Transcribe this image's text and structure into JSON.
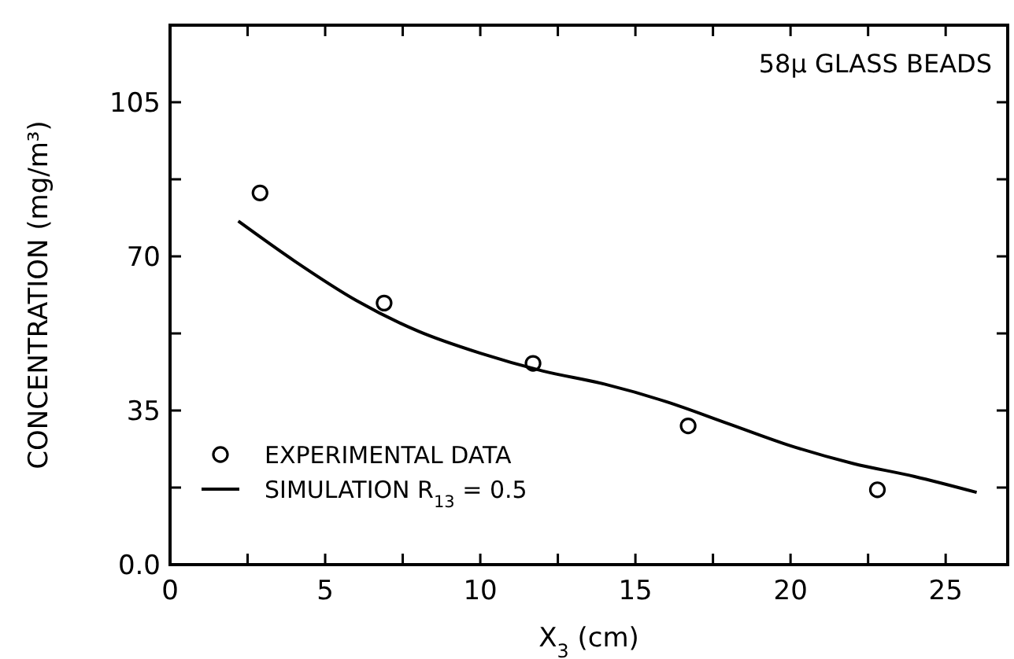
{
  "chart_data": {
    "type": "scatter",
    "title": "58μ GLASS BEADS",
    "xlabel": "X$_{3}$ (cm)",
    "ylabel": "CONCENTRATION (mg/m³)",
    "xlim": [
      0,
      27
    ],
    "xticks": [
      0,
      {
        "value": 2.5,
        "label": null
      },
      5,
      {
        "value": 7.5,
        "label": null
      },
      10,
      {
        "value": 12.5,
        "label": null
      },
      15,
      {
        "value": 17.5,
        "label": null
      },
      20,
      {
        "value": 22.5,
        "label": null
      },
      25
    ],
    "ylim": [
      0,
      122.5
    ],
    "yticks": [
      {
        "value": 0,
        "label": "0.0"
      },
      {
        "value": 17.5,
        "label": null
      },
      35,
      {
        "value": 52.5,
        "label": null
      },
      70,
      {
        "value": 87.5,
        "label": null
      },
      105
    ],
    "grid": false,
    "legend": "bottom left",
    "series": [
      {
        "name": "EXPERIMENTAL DATA",
        "color": "#000000",
        "marker": "circle",
        "x": [
          2.9,
          6.9,
          11.7,
          16.7,
          22.8
        ],
        "values": [
          84.4,
          59.4,
          45.7,
          31.5,
          17.0
        ]
      },
      {
        "name": "SIMULATION  R$_{13}$ = 0.5",
        "type": "line",
        "color": "#000000",
        "line_style": "solid",
        "x": [
          2.2,
          4,
          6,
          8,
          10,
          12,
          14,
          16,
          18,
          20,
          22,
          24,
          26
        ],
        "values": [
          78,
          69,
          60,
          53,
          48,
          44,
          41,
          37,
          32,
          27,
          23,
          20,
          16.4
        ]
      }
    ]
  }
}
